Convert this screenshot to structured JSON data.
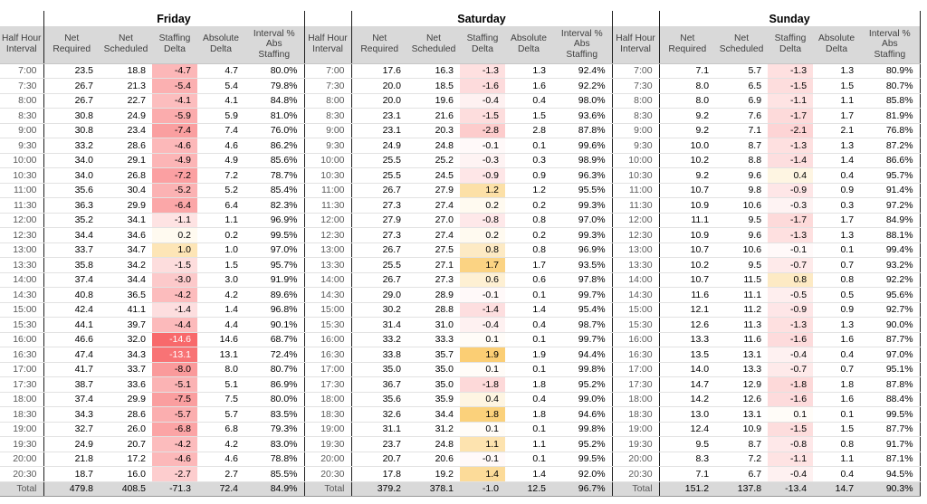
{
  "colors": {
    "header_bg": "#d9d9d9",
    "total_bg": "#d9d9d9",
    "header_text": "#404040",
    "interval_text": "#595959",
    "grid_line": "#e2e2e2",
    "group_border": "#1f1f1f",
    "heat_negative": "#f8696b",
    "heat_positive": "#fbce74",
    "heat_text_light": "#ffffff"
  },
  "chart_data": {
    "type": "table",
    "interval_header": "Half Hour\nInterval",
    "columns": [
      "Net\nRequired",
      "Net\nScheduled",
      "Staffing\nDelta",
      "Absolute\nDelta",
      "Interval %\nAbs\nStaffing"
    ],
    "total_label": "Total",
    "intervals": [
      "7:00",
      "7:30",
      "8:00",
      "8:30",
      "9:00",
      "9:30",
      "10:00",
      "10:30",
      "11:00",
      "11:30",
      "12:00",
      "12:30",
      "13:00",
      "13:30",
      "14:00",
      "14:30",
      "15:00",
      "15:30",
      "16:00",
      "16:30",
      "17:00",
      "17:30",
      "18:00",
      "18:30",
      "19:00",
      "19:30",
      "20:00",
      "20:30"
    ],
    "days": [
      {
        "name": "Friday",
        "rows": [
          [
            23.5,
            18.8,
            -4.7,
            4.7,
            80.0
          ],
          [
            26.7,
            21.3,
            -5.4,
            5.4,
            79.8
          ],
          [
            26.7,
            22.7,
            -4.1,
            4.1,
            84.8
          ],
          [
            30.8,
            24.9,
            -5.9,
            5.9,
            81.0
          ],
          [
            30.8,
            23.4,
            -7.4,
            7.4,
            76.0
          ],
          [
            33.2,
            28.6,
            -4.6,
            4.6,
            86.2
          ],
          [
            34.0,
            29.1,
            -4.9,
            4.9,
            85.6
          ],
          [
            34.0,
            26.8,
            -7.2,
            7.2,
            78.7
          ],
          [
            35.6,
            30.4,
            -5.2,
            5.2,
            85.4
          ],
          [
            36.3,
            29.9,
            -6.4,
            6.4,
            82.3
          ],
          [
            35.2,
            34.1,
            -1.1,
            1.1,
            96.9
          ],
          [
            34.4,
            34.6,
            0.2,
            0.2,
            99.5
          ],
          [
            33.7,
            34.7,
            1.0,
            1.0,
            97.0
          ],
          [
            35.8,
            34.2,
            -1.5,
            1.5,
            95.7
          ],
          [
            37.4,
            34.4,
            -3.0,
            3.0,
            91.9
          ],
          [
            40.8,
            36.5,
            -4.2,
            4.2,
            89.6
          ],
          [
            42.4,
            41.1,
            -1.4,
            1.4,
            96.8
          ],
          [
            44.1,
            39.7,
            -4.4,
            4.4,
            90.1
          ],
          [
            46.6,
            32.0,
            -14.6,
            14.6,
            68.7
          ],
          [
            47.4,
            34.3,
            -13.1,
            13.1,
            72.4
          ],
          [
            41.7,
            33.7,
            -8.0,
            8.0,
            80.7
          ],
          [
            38.7,
            33.6,
            -5.1,
            5.1,
            86.9
          ],
          [
            37.4,
            29.9,
            -7.5,
            7.5,
            80.0
          ],
          [
            34.3,
            28.6,
            -5.7,
            5.7,
            83.5
          ],
          [
            32.7,
            26.0,
            -6.8,
            6.8,
            79.3
          ],
          [
            24.9,
            20.7,
            -4.2,
            4.2,
            83.0
          ],
          [
            21.8,
            17.2,
            -4.6,
            4.6,
            78.8
          ],
          [
            18.7,
            16.0,
            -2.7,
            2.7,
            85.5
          ]
        ],
        "total": [
          479.8,
          408.5,
          -71.3,
          72.4,
          84.9
        ]
      },
      {
        "name": "Saturday",
        "rows": [
          [
            17.6,
            16.3,
            -1.3,
            1.3,
            92.4
          ],
          [
            20.0,
            18.5,
            -1.6,
            1.6,
            92.2
          ],
          [
            20.0,
            19.6,
            -0.4,
            0.4,
            98.0
          ],
          [
            23.1,
            21.6,
            -1.5,
            1.5,
            93.6
          ],
          [
            23.1,
            20.3,
            -2.8,
            2.8,
            87.8
          ],
          [
            24.9,
            24.8,
            -0.1,
            0.1,
            99.6
          ],
          [
            25.5,
            25.2,
            -0.3,
            0.3,
            98.9
          ],
          [
            25.5,
            24.5,
            -0.9,
            0.9,
            96.3
          ],
          [
            26.7,
            27.9,
            1.2,
            1.2,
            95.5
          ],
          [
            27.3,
            27.4,
            0.2,
            0.2,
            99.3
          ],
          [
            27.9,
            27.0,
            -0.8,
            0.8,
            97.0
          ],
          [
            27.3,
            27.4,
            0.2,
            0.2,
            99.3
          ],
          [
            26.7,
            27.5,
            0.8,
            0.8,
            96.9
          ],
          [
            25.5,
            27.1,
            1.7,
            1.7,
            93.5
          ],
          [
            26.7,
            27.3,
            0.6,
            0.6,
            97.8
          ],
          [
            29.0,
            28.9,
            -0.1,
            0.1,
            99.7
          ],
          [
            30.2,
            28.8,
            -1.4,
            1.4,
            95.4
          ],
          [
            31.4,
            31.0,
            -0.4,
            0.4,
            98.7
          ],
          [
            33.2,
            33.3,
            0.1,
            0.1,
            99.7
          ],
          [
            33.8,
            35.7,
            1.9,
            1.9,
            94.4
          ],
          [
            35.0,
            35.0,
            0.1,
            0.1,
            99.8
          ],
          [
            36.7,
            35.0,
            -1.8,
            1.8,
            95.2
          ],
          [
            35.6,
            35.9,
            0.4,
            0.4,
            99.0
          ],
          [
            32.6,
            34.4,
            1.8,
            1.8,
            94.6
          ],
          [
            31.1,
            31.2,
            0.1,
            0.1,
            99.8
          ],
          [
            23.7,
            24.8,
            1.1,
            1.1,
            95.2
          ],
          [
            20.7,
            20.6,
            -0.1,
            0.1,
            99.5
          ],
          [
            17.8,
            19.2,
            1.4,
            1.4,
            92.0
          ]
        ],
        "total": [
          379.2,
          378.1,
          -1.0,
          12.5,
          96.7
        ]
      },
      {
        "name": "Sunday",
        "rows": [
          [
            7.1,
            5.7,
            -1.3,
            1.3,
            80.9
          ],
          [
            8.0,
            6.5,
            -1.5,
            1.5,
            80.7
          ],
          [
            8.0,
            6.9,
            -1.1,
            1.1,
            85.8
          ],
          [
            9.2,
            7.6,
            -1.7,
            1.7,
            81.9
          ],
          [
            9.2,
            7.1,
            -2.1,
            2.1,
            76.8
          ],
          [
            10.0,
            8.7,
            -1.3,
            1.3,
            87.2
          ],
          [
            10.2,
            8.8,
            -1.4,
            1.4,
            86.6
          ],
          [
            9.2,
            9.6,
            0.4,
            0.4,
            95.7
          ],
          [
            10.7,
            9.8,
            -0.9,
            0.9,
            91.4
          ],
          [
            10.9,
            10.6,
            -0.3,
            0.3,
            97.2
          ],
          [
            11.1,
            9.5,
            -1.7,
            1.7,
            84.9
          ],
          [
            10.9,
            9.6,
            -1.3,
            1.3,
            88.1
          ],
          [
            10.7,
            10.6,
            -0.1,
            0.1,
            99.4
          ],
          [
            10.2,
            9.5,
            -0.7,
            0.7,
            93.2
          ],
          [
            10.7,
            11.5,
            0.8,
            0.8,
            92.2
          ],
          [
            11.6,
            11.1,
            -0.5,
            0.5,
            95.6
          ],
          [
            12.1,
            11.2,
            -0.9,
            0.9,
            92.7
          ],
          [
            12.6,
            11.3,
            -1.3,
            1.3,
            90.0
          ],
          [
            13.3,
            11.6,
            -1.6,
            1.6,
            87.7
          ],
          [
            13.5,
            13.1,
            -0.4,
            0.4,
            97.0
          ],
          [
            14.0,
            13.3,
            -0.7,
            0.7,
            95.1
          ],
          [
            14.7,
            12.9,
            -1.8,
            1.8,
            87.8
          ],
          [
            14.2,
            12.6,
            -1.6,
            1.6,
            88.4
          ],
          [
            13.0,
            13.1,
            0.1,
            0.1,
            99.5
          ],
          [
            12.4,
            10.9,
            -1.5,
            1.5,
            87.7
          ],
          [
            9.5,
            8.7,
            -0.8,
            0.8,
            91.7
          ],
          [
            8.3,
            7.2,
            -1.1,
            1.1,
            87.1
          ],
          [
            7.1,
            6.7,
            -0.4,
            0.4,
            94.5
          ]
        ],
        "total": [
          151.2,
          137.8,
          -13.4,
          14.7,
          90.3
        ]
      }
    ]
  }
}
